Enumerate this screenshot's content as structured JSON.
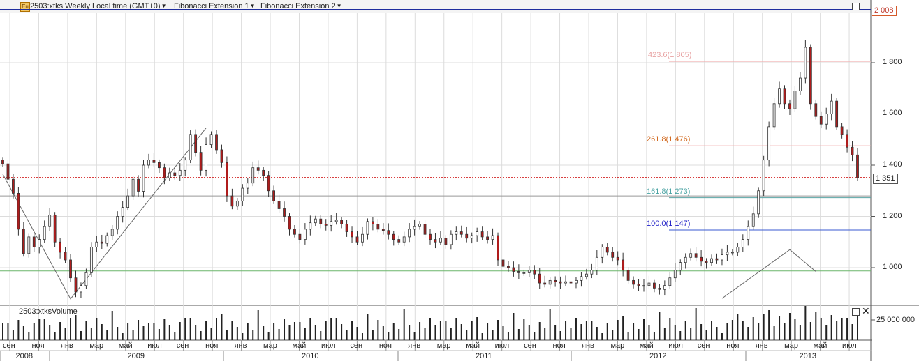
{
  "header": {
    "symbol_title": "2503:xtks Weekly Local time (GMT+0)",
    "study_1": "Fibonacci Extension 1",
    "study_2": "Fibonacci Extension 2",
    "icon": "chart-app-icon"
  },
  "price_axis": {
    "ticks": [
      "1 800",
      "1 600",
      "1 400",
      "1 200",
      "1 000"
    ],
    "top_price": "2 008",
    "last_price": "1 351"
  },
  "volume_pane": {
    "title": "2503:xtksVolume",
    "tick": "25 000 000"
  },
  "time_axis": {
    "months": [
      "сен",
      "ноя",
      "янв",
      "мар",
      "май",
      "июл",
      "сен",
      "ноя",
      "янв",
      "мар",
      "май",
      "июл",
      "сен",
      "ноя",
      "янв",
      "мар",
      "май",
      "июл",
      "сен",
      "ноя",
      "янв",
      "мар",
      "май",
      "июл",
      "сен",
      "ноя",
      "янв",
      "мар",
      "май",
      "июл"
    ],
    "years": [
      "2008",
      "2009",
      "2010",
      "2011",
      "2012",
      "2013"
    ]
  },
  "fib_labels": [
    {
      "text": "423.6(1 805)",
      "color": "#e8a3a3"
    },
    {
      "text": "261.8(1 476)",
      "color": "#d2691e"
    },
    {
      "text": "161.8(1 273)",
      "color": "#4aa3a3"
    },
    {
      "text": "100.0(1 147)",
      "color": "#2323c8"
    }
  ],
  "chart_data": {
    "type": "candlestick",
    "title": "2503:xtks Weekly",
    "x_range": [
      "2008-09",
      "2013-08"
    ],
    "ylim": [
      850,
      2010
    ],
    "line_values": [
      {
        "name": "top_line",
        "value": 2008,
        "color": "#1f2d9e"
      },
      {
        "name": "last_price",
        "value": 1351,
        "color": "#cc0000"
      },
      {
        "name": "fib_423.6",
        "value": 1805,
        "color": "#f0b0b0"
      },
      {
        "name": "fib_261.8",
        "value": 1476,
        "color": "#f0b0b0"
      },
      {
        "name": "fib_161.8",
        "value": 1273,
        "color": "#5aa5a5"
      },
      {
        "name": "fib_100.0",
        "value": 1147,
        "color": "#3a5ad0"
      },
      {
        "name": "h_line_a",
        "value": 1280,
        "color": "#999999"
      },
      {
        "name": "h_line_b",
        "value": 987,
        "color": "#6bb56b"
      }
    ],
    "zigzag_1": [
      [
        0,
        1365
      ],
      [
        13,
        878
      ],
      [
        39,
        1545
      ]
    ],
    "zigzag_2": [
      [
        138,
        880
      ],
      [
        151,
        1070
      ],
      [
        156,
        985
      ]
    ],
    "closes": [
      1405,
      1345,
      1290,
      1150,
      1055,
      1120,
      1080,
      1110,
      1160,
      1205,
      1100,
      1060,
      1030,
      960,
      905,
      930,
      980,
      1080,
      1100,
      1095,
      1125,
      1150,
      1200,
      1235,
      1280,
      1345,
      1298,
      1400,
      1420,
      1410,
      1390,
      1350,
      1370,
      1360,
      1380,
      1420,
      1520,
      1450,
      1380,
      1480,
      1520,
      1460,
      1410,
      1280,
      1240,
      1260,
      1310,
      1330,
      1390,
      1380,
      1360,
      1300,
      1260,
      1230,
      1200,
      1150,
      1130,
      1110,
      1150,
      1175,
      1190,
      1170,
      1165,
      1180,
      1185,
      1170,
      1140,
      1120,
      1100,
      1130,
      1180,
      1170,
      1150,
      1145,
      1130,
      1110,
      1100,
      1120,
      1150,
      1160,
      1170,
      1130,
      1110,
      1100,
      1115,
      1090,
      1130,
      1140,
      1130,
      1115,
      1125,
      1140,
      1120,
      1110,
      1125,
      1030,
      1005,
      1000,
      985,
      980,
      980,
      990,
      975,
      940,
      935,
      950,
      945,
      940,
      945,
      940,
      950,
      965,
      975,
      990,
      1040,
      1080,
      1060,
      1040,
      1030,
      990,
      950,
      935,
      930,
      930,
      940,
      920,
      915,
      930,
      960,
      990,
      1020,
      1040,
      1055,
      1040,
      1025,
      1020,
      1035,
      1030,
      1050,
      1060,
      1060,
      1080,
      1110,
      1160,
      1210,
      1300,
      1420,
      1550,
      1640,
      1700,
      1640,
      1620,
      1690,
      1740,
      1860,
      1640,
      1590,
      1560,
      1600,
      1650,
      1550,
      1520,
      1470,
      1440,
      1351
    ]
  }
}
